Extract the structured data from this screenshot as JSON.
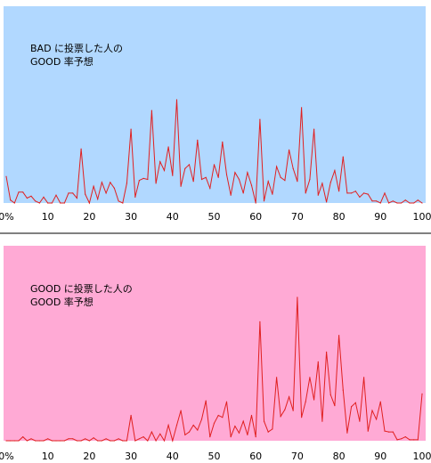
{
  "chart_data": [
    {
      "type": "line",
      "background": "#b1d8ff",
      "line_color": "#e02020",
      "annotation": [
        "BAD に投票した人の",
        "GOOD 率予想"
      ],
      "tick_labels": [
        "0%",
        "10",
        "20",
        "30",
        "40",
        "50",
        "60",
        "70",
        "80",
        "90",
        "100"
      ],
      "x": [
        0,
        1,
        2,
        3,
        4,
        5,
        6,
        7,
        8,
        9,
        10,
        11,
        12,
        13,
        14,
        15,
        16,
        17,
        18,
        19,
        20,
        21,
        22,
        23,
        24,
        25,
        26,
        27,
        28,
        29,
        30,
        31,
        32,
        33,
        34,
        35,
        36,
        37,
        38,
        39,
        40,
        41,
        42,
        43,
        44,
        45,
        46,
        47,
        48,
        49,
        50,
        51,
        52,
        53,
        54,
        55,
        56,
        57,
        58,
        59,
        60,
        61,
        62,
        63,
        64,
        65,
        66,
        67,
        68,
        69,
        70,
        71,
        72,
        73,
        74,
        75,
        76,
        77,
        78,
        79,
        80,
        81,
        82,
        83,
        84,
        85,
        86,
        87,
        88,
        89,
        90,
        91,
        92,
        93,
        94,
        95,
        96,
        97,
        98,
        99,
        100
      ],
      "values": [
        27,
        3,
        0,
        11,
        11,
        5,
        7,
        2,
        0,
        6,
        0,
        0,
        8,
        0,
        0,
        10,
        10,
        5,
        55,
        9,
        0,
        17,
        4,
        21,
        10,
        21,
        15,
        2,
        0,
        20,
        75,
        6,
        23,
        25,
        24,
        94,
        20,
        42,
        33,
        57,
        28,
        105,
        17,
        35,
        39,
        22,
        64,
        24,
        26,
        15,
        39,
        26,
        62,
        29,
        8,
        31,
        24,
        10,
        31,
        18,
        0,
        85,
        2,
        22,
        9,
        37,
        26,
        23,
        54,
        35,
        22,
        97,
        10,
        24,
        75,
        8,
        20,
        1,
        21,
        33,
        12,
        47,
        10,
        10,
        12,
        6,
        10,
        9,
        2,
        2,
        0,
        10,
        0,
        2,
        0,
        0,
        3,
        0,
        0,
        3,
        0
      ],
      "ylim": [
        0,
        200
      ],
      "xlim": [
        0,
        100
      ],
      "grid": false
    },
    {
      "type": "line",
      "background": "#ffaad5",
      "line_color": "#e02020",
      "annotation": [
        "GOOD に投票した人の",
        "GOOD 率予想"
      ],
      "tick_labels": [
        "0%",
        "10",
        "20",
        "30",
        "40",
        "50",
        "60",
        "70",
        "80",
        "90",
        "100"
      ],
      "x": [
        0,
        1,
        2,
        3,
        4,
        5,
        6,
        7,
        8,
        9,
        10,
        11,
        12,
        13,
        14,
        15,
        16,
        17,
        18,
        19,
        20,
        21,
        22,
        23,
        24,
        25,
        26,
        27,
        28,
        29,
        30,
        31,
        32,
        33,
        34,
        35,
        36,
        37,
        38,
        39,
        40,
        41,
        42,
        43,
        44,
        45,
        46,
        47,
        48,
        49,
        50,
        51,
        52,
        53,
        54,
        55,
        56,
        57,
        58,
        59,
        60,
        61,
        62,
        63,
        64,
        65,
        66,
        67,
        68,
        69,
        70,
        71,
        72,
        73,
        74,
        75,
        76,
        77,
        78,
        79,
        80,
        81,
        82,
        83,
        84,
        85,
        86,
        87,
        88,
        89,
        90,
        91,
        92,
        93,
        94,
        95,
        96,
        97,
        98,
        99,
        100
      ],
      "values": [
        0,
        0,
        0,
        0,
        4,
        0,
        2,
        0,
        0,
        0,
        2,
        0,
        0,
        0,
        0,
        2,
        2,
        0,
        0,
        2,
        0,
        3,
        0,
        0,
        2,
        0,
        0,
        2,
        0,
        0,
        26,
        0,
        2,
        4,
        0,
        9,
        0,
        7,
        0,
        16,
        0,
        16,
        31,
        6,
        9,
        16,
        11,
        22,
        41,
        4,
        18,
        26,
        24,
        40,
        4,
        15,
        8,
        20,
        6,
        26,
        4,
        122,
        20,
        9,
        12,
        65,
        25,
        32,
        45,
        31,
        147,
        24,
        40,
        65,
        42,
        81,
        20,
        91,
        47,
        36,
        108,
        52,
        8,
        35,
        39,
        20,
        65,
        10,
        31,
        22,
        40,
        10,
        9,
        9,
        1,
        2,
        4,
        1,
        1,
        1,
        48
      ],
      "ylim": [
        0,
        200
      ],
      "xlim": [
        0,
        100
      ],
      "grid": false
    }
  ]
}
